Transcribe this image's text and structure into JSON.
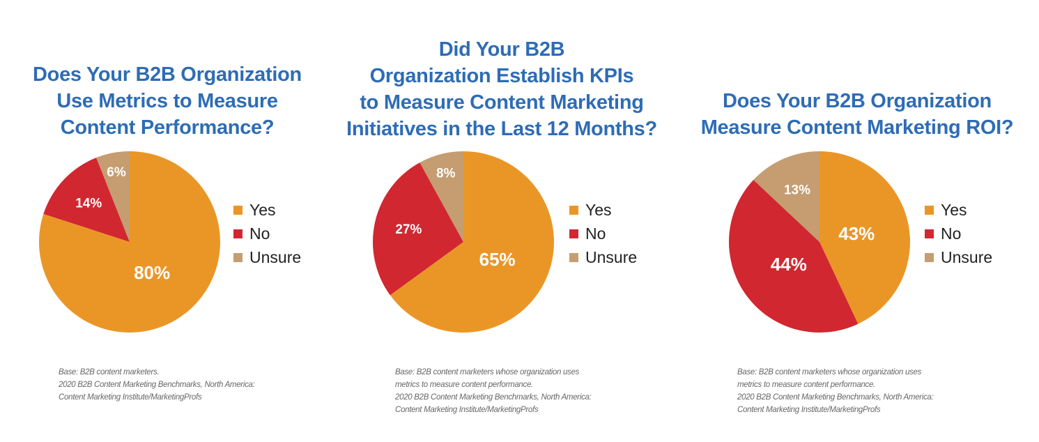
{
  "colors": {
    "yes": "#EA9627",
    "no": "#D12730",
    "unsure": "#C59D70",
    "title": "#2E6CB5"
  },
  "legend_labels": [
    "Yes",
    "No",
    "Unsure"
  ],
  "chart_data": [
    {
      "type": "pie",
      "title_lines": [
        "Does Your B2B Organization",
        "Use Metrics to Measure",
        "Content Performance?"
      ],
      "categories": [
        "Yes",
        "No",
        "Unsure"
      ],
      "values": [
        80,
        14,
        6
      ],
      "value_labels": [
        "80%",
        "14%",
        "6%"
      ],
      "footnote_lines": [
        "Base: B2B content marketers.",
        "2020 B2B Content Marketing Benchmarks, North America:",
        "Content Marketing Institute/MarketingProfs"
      ]
    },
    {
      "type": "pie",
      "title_lines": [
        "Did Your B2B",
        "Organization Establish KPIs",
        "to Measure Content Marketing",
        "Initiatives in the Last 12 Months?"
      ],
      "categories": [
        "Yes",
        "No",
        "Unsure"
      ],
      "values": [
        65,
        27,
        8
      ],
      "value_labels": [
        "65%",
        "27%",
        "8%"
      ],
      "footnote_lines": [
        "Base: B2B content marketers whose organization uses",
        "metrics to measure content performance.",
        "2020 B2B Content Marketing Benchmarks, North America:",
        "Content Marketing Institute/MarketingProfs"
      ]
    },
    {
      "type": "pie",
      "title_lines": [
        "Does Your B2B Organization",
        "Measure Content Marketing ROI?"
      ],
      "categories": [
        "Yes",
        "No",
        "Unsure"
      ],
      "values": [
        43,
        44,
        13
      ],
      "value_labels": [
        "43%",
        "44%",
        "13%"
      ],
      "footnote_lines": [
        "Base: B2B content marketers whose organization uses",
        "metrics to measure content performance.",
        "2020 B2B Content Marketing Benchmarks, North America:",
        "Content Marketing Institute/MarketingProfs"
      ]
    }
  ]
}
